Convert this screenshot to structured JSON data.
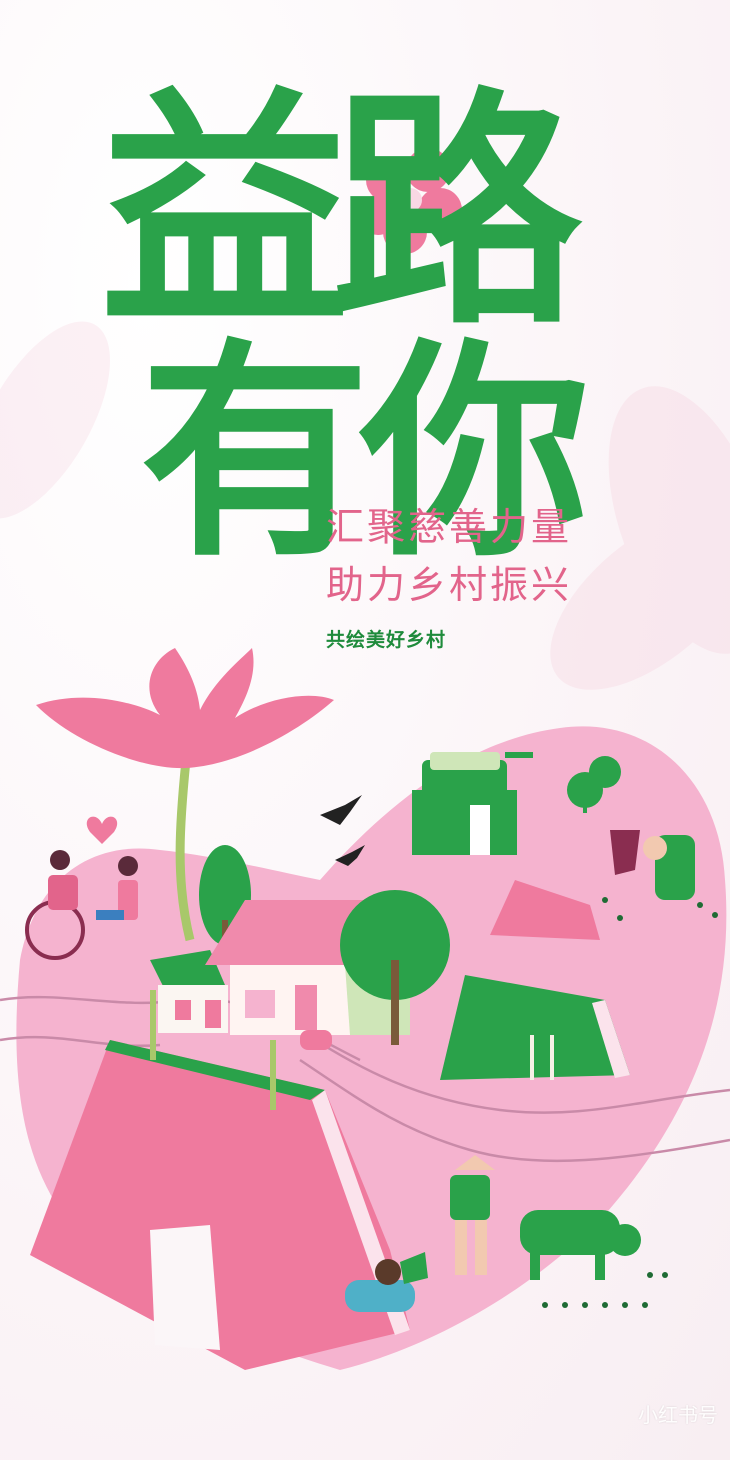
{
  "title": {
    "line1": "益路",
    "line2": "有你"
  },
  "slogan": {
    "line1": "汇聚慈善力量",
    "line2": "助力乡村振兴"
  },
  "subtitle": "共绘美好乡村",
  "watermark": "小红书号",
  "colors": {
    "green": "#2aa24a",
    "pink": "#f3a9c6",
    "rose": "#e2648b",
    "deep_pink": "#ef7a9e"
  }
}
